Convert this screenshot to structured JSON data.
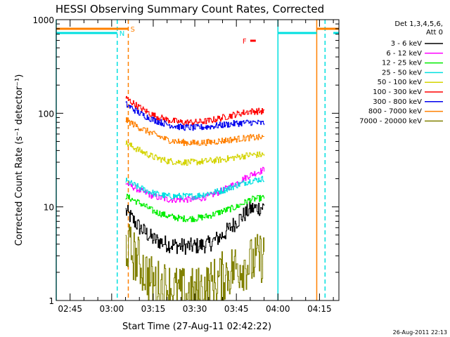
{
  "chart_data": {
    "type": "line",
    "title": "HESSI Observing Summary Count Rates, Corrected",
    "xlabel": "Start Time (27-Aug-11 02:42:22)",
    "ylabel": "Corrected Count Rate (s⁻¹ detector⁻¹)",
    "x_unit": "UT time",
    "xlim": [
      "02:40",
      "04:22"
    ],
    "ylim": [
      1,
      1000
    ],
    "yscale": "log",
    "x_ticks": [
      "02:45",
      "03:00",
      "03:15",
      "03:30",
      "03:45",
      "04:00",
      "04:15"
    ],
    "y_ticks": [
      "1",
      "10",
      "100",
      "1000"
    ],
    "grid": false,
    "legend_position": "right",
    "legend_title": [
      "Det 1,3,4,5,6,",
      "Att 0"
    ],
    "footer": "26-Aug-2011 22:13",
    "flags": [
      {
        "label": "S",
        "color": "#ff8000",
        "intervals": [
          [
            "02:40",
            "03:06"
          ],
          [
            "04:14",
            "04:22"
          ]
        ]
      },
      {
        "label": "N",
        "color": "#00e0e0",
        "intervals": [
          [
            "02:40",
            "03:02"
          ],
          [
            "04:00",
            "04:14"
          ],
          [
            "04:20",
            "04:22"
          ]
        ]
      },
      {
        "label": "F",
        "color": "#ff0000",
        "intervals": [
          [
            "03:50",
            "03:52"
          ]
        ]
      }
    ],
    "markers": [
      {
        "time": "02:40",
        "color": "#00e0e0",
        "style": "solid"
      },
      {
        "time": "03:02",
        "color": "#00e0e0",
        "style": "dashed"
      },
      {
        "time": "03:06",
        "color": "#ff8000",
        "style": "dashed"
      },
      {
        "time": "04:00",
        "color": "#00e0e0",
        "style": "solid"
      },
      {
        "time": "04:14",
        "color": "#ff8000",
        "style": "solid"
      },
      {
        "time": "04:17",
        "color": "#00e0e0",
        "style": "dashed"
      }
    ],
    "x": [
      "03:05",
      "03:10",
      "03:15",
      "03:20",
      "03:25",
      "03:30",
      "03:35",
      "03:40",
      "03:45",
      "03:50",
      "03:55"
    ],
    "series": [
      {
        "name": "3 - 6 keV",
        "color": "#000000",
        "values": [
          9,
          6,
          4.5,
          4,
          3.8,
          3.8,
          4,
          5,
          7,
          9.5,
          10
        ]
      },
      {
        "name": "6 - 12 keV",
        "color": "#ff00ff",
        "values": [
          18,
          15,
          13,
          12,
          12,
          12,
          13,
          15,
          18,
          22,
          25
        ]
      },
      {
        "name": "12 - 25 keV",
        "color": "#00ee00",
        "values": [
          13,
          11,
          9,
          8,
          7.5,
          7.5,
          8,
          9,
          10,
          12,
          12.5
        ]
      },
      {
        "name": "25 - 50 keV",
        "color": "#00e0e0",
        "values": [
          19,
          16,
          14,
          13,
          13,
          13,
          14,
          15,
          17,
          19,
          20
        ]
      },
      {
        "name": "50 - 100 keV",
        "color": "#d4d400",
        "values": [
          48,
          40,
          34,
          31,
          30,
          30,
          31,
          32,
          34,
          36,
          36
        ]
      },
      {
        "name": "100 - 300 keV",
        "color": "#ff0000",
        "values": [
          145,
          115,
          95,
          85,
          80,
          80,
          83,
          90,
          98,
          105,
          105
        ]
      },
      {
        "name": "300 - 800 keV",
        "color": "#0000ee",
        "values": [
          125,
          100,
          85,
          76,
          71,
          70,
          72,
          75,
          78,
          80,
          78
        ]
      },
      {
        "name": "800 - 7000 keV",
        "color": "#ff8000",
        "values": [
          85,
          70,
          60,
          52,
          49,
          48,
          49,
          51,
          53,
          55,
          55
        ]
      },
      {
        "name": "7000 - 20000 keV",
        "color": "#808000",
        "values": [
          4,
          2.5,
          1.5,
          1.4,
          1.2,
          1.2,
          1.4,
          1.8,
          2.3,
          2.5,
          3
        ]
      }
    ]
  }
}
